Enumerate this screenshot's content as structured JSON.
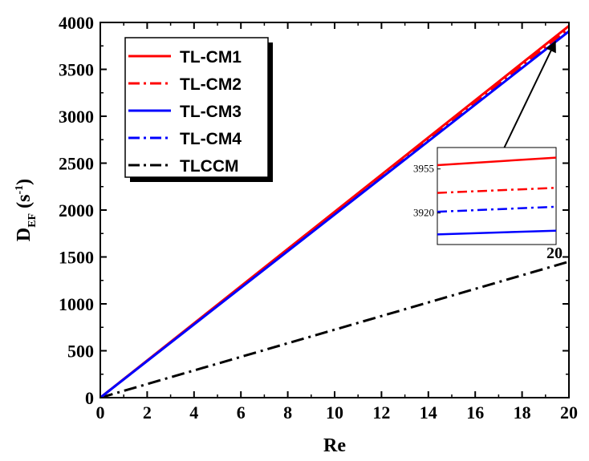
{
  "chart_data": {
    "type": "line",
    "xlabel": "Re",
    "ylabel": {
      "main": "D",
      "sub": "EF",
      "unit_open": " (s",
      "unit_sup": "-1",
      "unit_close": ")"
    },
    "xlim": [
      0,
      20
    ],
    "ylim": [
      0,
      4000
    ],
    "xticks": [
      0,
      2,
      4,
      6,
      8,
      10,
      12,
      14,
      16,
      18,
      20
    ],
    "yticks": [
      0,
      500,
      1000,
      1500,
      2000,
      2500,
      3000,
      3500,
      4000
    ],
    "series": [
      {
        "name": "TL-CM1",
        "color": "#ff0000",
        "dash": "solid",
        "x": [
          0,
          20
        ],
        "y": [
          0,
          3963
        ]
      },
      {
        "name": "TL-CM2",
        "color": "#ff0000",
        "dash": "dashdot",
        "x": [
          0,
          20
        ],
        "y": [
          0,
          3938
        ]
      },
      {
        "name": "TL-CM3",
        "color": "#0000ff",
        "dash": "solid",
        "x": [
          0,
          20
        ],
        "y": [
          0,
          3905
        ]
      },
      {
        "name": "TL-CM4",
        "color": "#0000ff",
        "dash": "dashdot",
        "x": [
          0,
          20
        ],
        "y": [
          0,
          3925
        ]
      },
      {
        "name": "TLCCM",
        "color": "#000000",
        "dash": "dashdot",
        "x": [
          0,
          20
        ],
        "y": [
          0,
          1450
        ]
      }
    ],
    "legend_position": "top-left",
    "inset": {
      "yticks": [
        3955,
        3920
      ],
      "x_label": "20",
      "ylim": [
        3895,
        3972
      ],
      "lines": [
        {
          "series": "TL-CM1",
          "y_start": 3958,
          "y_end": 3964
        },
        {
          "series": "TL-CM2",
          "y_start": 3936,
          "y_end": 3940
        },
        {
          "series": "TL-CM4",
          "y_start": 3921,
          "y_end": 3925
        },
        {
          "series": "TL-CM3",
          "y_start": 3903,
          "y_end": 3906
        }
      ]
    }
  }
}
